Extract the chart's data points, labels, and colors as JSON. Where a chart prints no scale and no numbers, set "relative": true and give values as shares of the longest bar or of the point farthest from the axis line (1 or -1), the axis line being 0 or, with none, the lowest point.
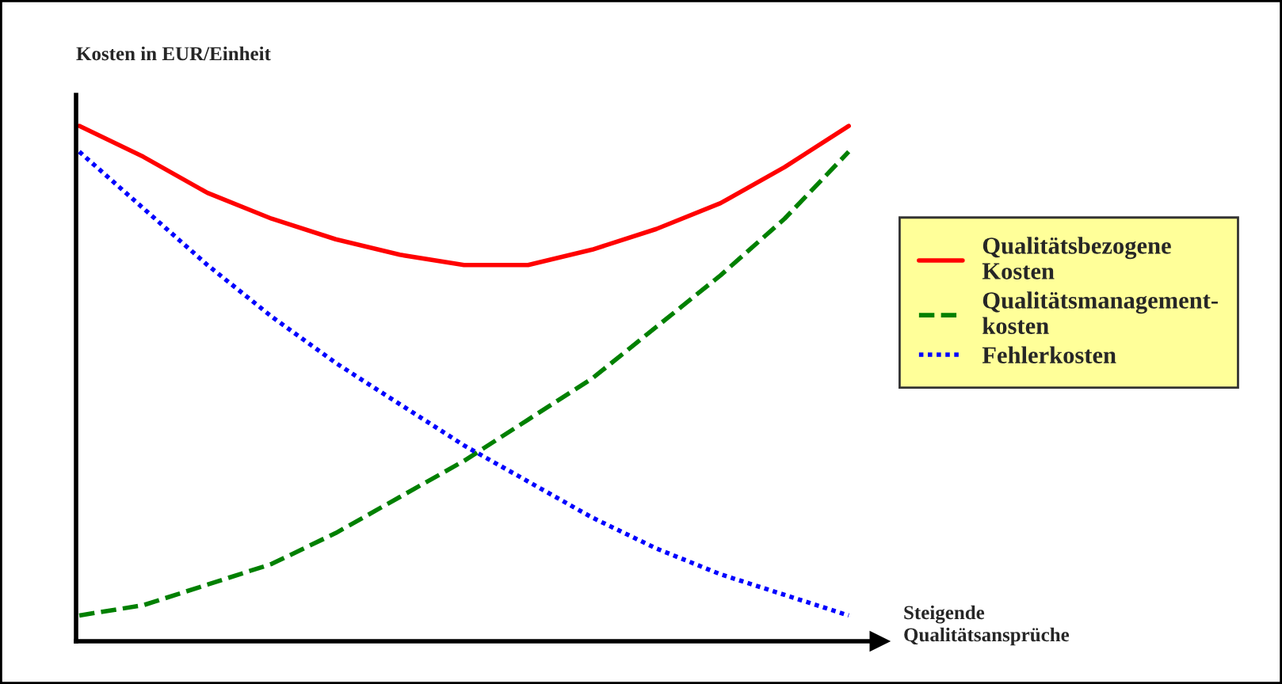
{
  "chart_data": {
    "type": "line",
    "relative": true,
    "ylabel": "Kosten in EUR/Einheit",
    "xlabel": "Steigende\nQualitätsansprüche",
    "categories": [
      null,
      null,
      null,
      null,
      null,
      null,
      null,
      null,
      null,
      null,
      null,
      null,
      null
    ],
    "series": [
      {
        "name": "Qualitätsbezogene\nKosten",
        "color": "#ff0000",
        "line_style": "solid",
        "values": [
          1.0,
          0.94,
          0.87,
          0.82,
          0.78,
          0.75,
          0.73,
          0.73,
          0.76,
          0.8,
          0.85,
          0.92,
          1.0
        ]
      },
      {
        "name": "Qualitätsmanagement-\nkosten",
        "color": "#008000",
        "line_style": "dashed",
        "values": [
          0.05,
          0.07,
          0.11,
          0.15,
          0.21,
          0.28,
          0.35,
          0.43,
          0.51,
          0.61,
          0.71,
          0.82,
          0.95
        ]
      },
      {
        "name": "Fehlerkosten",
        "color": "#0000ff",
        "line_style": "dotted",
        "values": [
          0.95,
          0.84,
          0.73,
          0.63,
          0.54,
          0.46,
          0.38,
          0.31,
          0.24,
          0.18,
          0.13,
          0.09,
          0.05
        ]
      }
    ],
    "legend": "right",
    "marker": "none"
  }
}
